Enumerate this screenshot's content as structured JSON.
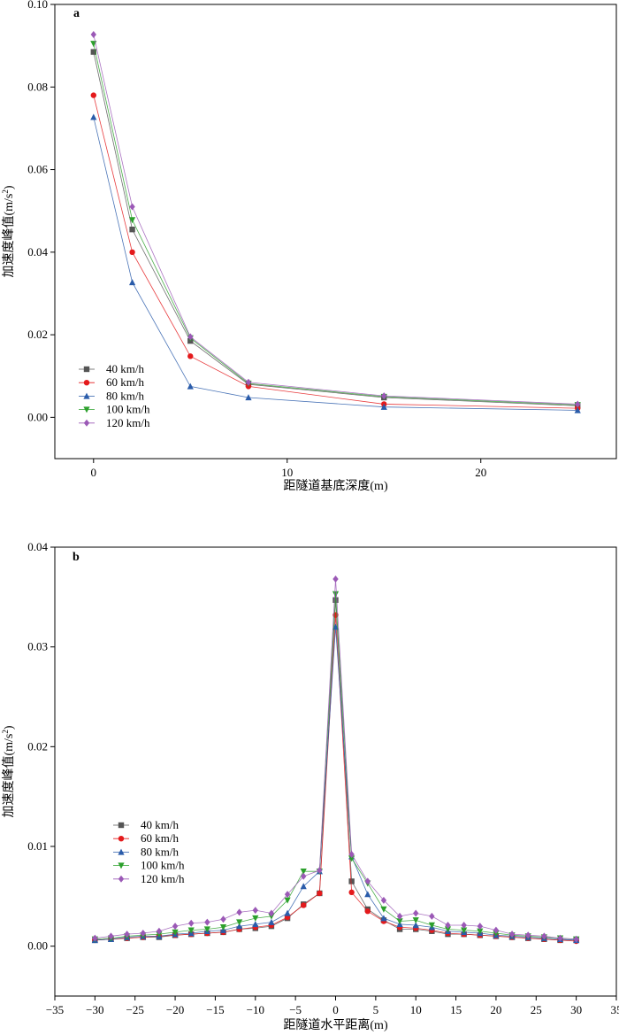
{
  "chart_data": [
    {
      "type": "line",
      "panel_label": "a",
      "title": "",
      "xlabel": "距隧道基底深度(m)",
      "ylabel": "加速度峰值(m/s",
      "ylabel_sup": "2",
      "ylabel_end": ")",
      "xlim": [
        -2,
        27
      ],
      "ylim": [
        -0.01,
        0.1
      ],
      "xticks": [
        0,
        10,
        20
      ],
      "yticks": [
        0.0,
        0.02,
        0.04,
        0.06,
        0.08,
        0.1
      ],
      "ytick_labels": [
        "0.00",
        "0.02",
        "0.04",
        "0.06",
        "0.08",
        "0.10"
      ],
      "x": [
        0,
        2,
        5,
        8,
        15,
        25
      ],
      "legend_position": "bottom-left",
      "series": [
        {
          "name": "40 km/h",
          "color": "#555555",
          "marker": "square",
          "values": [
            0.0885,
            0.0455,
            0.0185,
            0.008,
            0.0048,
            0.0028
          ]
        },
        {
          "name": "60 km/h",
          "color": "#e41a1c",
          "marker": "circle",
          "values": [
            0.078,
            0.04,
            0.0148,
            0.0075,
            0.0032,
            0.0022
          ]
        },
        {
          "name": "80 km/h",
          "color": "#2a5caa",
          "marker": "triangle-up",
          "values": [
            0.0727,
            0.0327,
            0.0075,
            0.0048,
            0.0025,
            0.0017
          ]
        },
        {
          "name": "100 km/h",
          "color": "#2ca02c",
          "marker": "triangle-down",
          "values": [
            0.0905,
            0.0478,
            0.0192,
            0.0082,
            0.005,
            0.003
          ]
        },
        {
          "name": "120 km/h",
          "color": "#9b59b6",
          "marker": "diamond",
          "values": [
            0.0927,
            0.051,
            0.0195,
            0.0085,
            0.0052,
            0.0032
          ]
        }
      ]
    },
    {
      "type": "line",
      "panel_label": "b",
      "title": "",
      "xlabel": "距隧道水平距离(m)",
      "ylabel": "加速度峰值(m/s",
      "ylabel_sup": "2",
      "ylabel_end": ")",
      "xlim": [
        -35,
        35
      ],
      "ylim": [
        -0.005,
        0.04
      ],
      "xticks": [
        -35,
        -30,
        -25,
        -20,
        -15,
        -10,
        -5,
        0,
        5,
        10,
        15,
        20,
        25,
        30,
        35
      ],
      "xtick_labels": [
        "−35",
        "−30",
        "−25",
        "−20",
        "−15",
        "−10",
        "−5",
        "0",
        "5",
        "10",
        "15",
        "20",
        "25",
        "30",
        "35"
      ],
      "yticks": [
        0.0,
        0.01,
        0.02,
        0.03,
        0.04
      ],
      "ytick_labels": [
        "0.00",
        "0.01",
        "0.02",
        "0.03",
        "0.04"
      ],
      "x": [
        -30,
        -28,
        -26,
        -24,
        -22,
        -20,
        -18,
        -16,
        -14,
        -12,
        -10,
        -8,
        -6,
        -4,
        -2,
        0,
        2,
        4,
        6,
        8,
        10,
        12,
        14,
        16,
        18,
        20,
        22,
        24,
        26,
        28,
        30
      ],
      "legend_position": "center-left",
      "series": [
        {
          "name": "40 km/h",
          "color": "#555555",
          "marker": "square",
          "values": [
            0.0006,
            0.0007,
            0.0008,
            0.0009,
            0.0009,
            0.0011,
            0.0012,
            0.0013,
            0.0014,
            0.0017,
            0.0018,
            0.002,
            0.0028,
            0.0042,
            0.0053,
            0.0347,
            0.0065,
            0.0037,
            0.0026,
            0.0017,
            0.0017,
            0.0015,
            0.0012,
            0.0012,
            0.0011,
            0.001,
            0.0009,
            0.0008,
            0.0007,
            0.0006,
            0.0006
          ]
        },
        {
          "name": "60 km/h",
          "color": "#e41a1c",
          "marker": "circle",
          "values": [
            0.0006,
            0.0007,
            0.0008,
            0.0009,
            0.001,
            0.0011,
            0.0012,
            0.0013,
            0.0014,
            0.0017,
            0.0019,
            0.0021,
            0.0029,
            0.0041,
            0.0053,
            0.0332,
            0.0054,
            0.0035,
            0.0025,
            0.0019,
            0.0018,
            0.0016,
            0.0013,
            0.0012,
            0.0011,
            0.001,
            0.0009,
            0.0008,
            0.0007,
            0.0006,
            0.0005
          ]
        },
        {
          "name": "80 km/h",
          "color": "#2a5caa",
          "marker": "triangle-up",
          "values": [
            0.0006,
            0.0007,
            0.0009,
            0.001,
            0.001,
            0.0012,
            0.0013,
            0.0015,
            0.0016,
            0.002,
            0.0022,
            0.0024,
            0.0033,
            0.006,
            0.0075,
            0.032,
            0.009,
            0.0052,
            0.0028,
            0.0022,
            0.0021,
            0.0019,
            0.0015,
            0.0014,
            0.0013,
            0.0011,
            0.001,
            0.0009,
            0.0008,
            0.0007,
            0.0006
          ]
        },
        {
          "name": "100 km/h",
          "color": "#2ca02c",
          "marker": "triangle-down",
          "values": [
            0.0007,
            0.0008,
            0.001,
            0.0011,
            0.0012,
            0.0014,
            0.0016,
            0.0017,
            0.0019,
            0.0024,
            0.0028,
            0.003,
            0.0046,
            0.0075,
            0.0075,
            0.0353,
            0.0088,
            0.0063,
            0.0037,
            0.0025,
            0.0026,
            0.0021,
            0.0017,
            0.0016,
            0.0015,
            0.0013,
            0.0011,
            0.001,
            0.0009,
            0.0008,
            0.0007
          ]
        },
        {
          "name": "120 km/h",
          "color": "#9b59b6",
          "marker": "diamond",
          "values": [
            0.0008,
            0.001,
            0.0012,
            0.0013,
            0.0015,
            0.002,
            0.0023,
            0.0024,
            0.0027,
            0.0034,
            0.0036,
            0.0033,
            0.0052,
            0.007,
            0.0076,
            0.0368,
            0.0092,
            0.0065,
            0.0046,
            0.003,
            0.0033,
            0.003,
            0.0021,
            0.0021,
            0.002,
            0.0016,
            0.0012,
            0.0011,
            0.001,
            0.0008,
            0.0007
          ]
        }
      ]
    }
  ]
}
